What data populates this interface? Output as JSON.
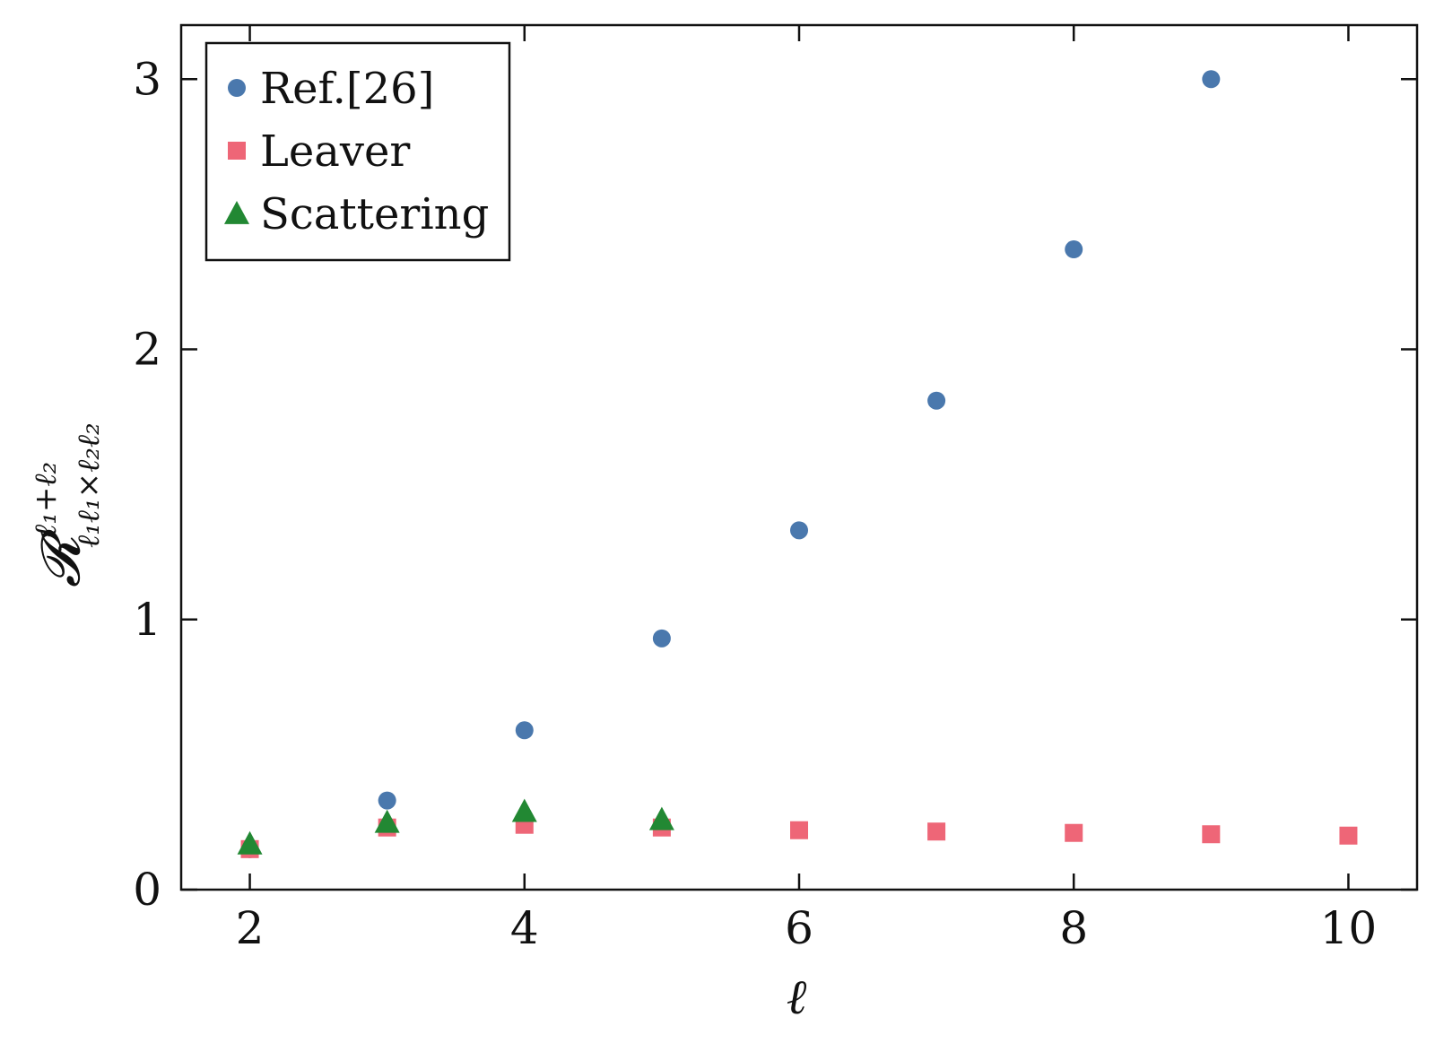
{
  "chart_data": {
    "type": "scatter",
    "xlabel": "ℓ",
    "ylabel": "𝓡",
    "ylabel_sup": "ℓ₁+ℓ₂",
    "ylabel_sub": "ℓ₁ℓ₁×ℓ₂ℓ₂",
    "xlim": [
      1.5,
      10.5
    ],
    "ylim": [
      0,
      3.2
    ],
    "xticks": [
      2,
      4,
      6,
      8,
      10
    ],
    "yticks": [
      0,
      1,
      2,
      3
    ],
    "grid": false,
    "legend_position": "top-left",
    "series": [
      {
        "name": "Ref.[26]",
        "marker": "circle",
        "color": "#4a78ad",
        "x": [
          2,
          3,
          4,
          5,
          6,
          7,
          8,
          9
        ],
        "y": [
          0.15,
          0.33,
          0.59,
          0.93,
          1.33,
          1.81,
          2.37,
          3.0
        ]
      },
      {
        "name": "Leaver",
        "marker": "square",
        "color": "#ee6677",
        "x": [
          2,
          3,
          4,
          5,
          6,
          7,
          8,
          9,
          10
        ],
        "y": [
          0.15,
          0.23,
          0.24,
          0.23,
          0.22,
          0.215,
          0.21,
          0.205,
          0.2
        ]
      },
      {
        "name": "Scattering",
        "marker": "triangle",
        "color": "#228833",
        "x": [
          2,
          3,
          4,
          5
        ],
        "y": [
          0.17,
          0.25,
          0.29,
          0.26
        ]
      }
    ]
  }
}
